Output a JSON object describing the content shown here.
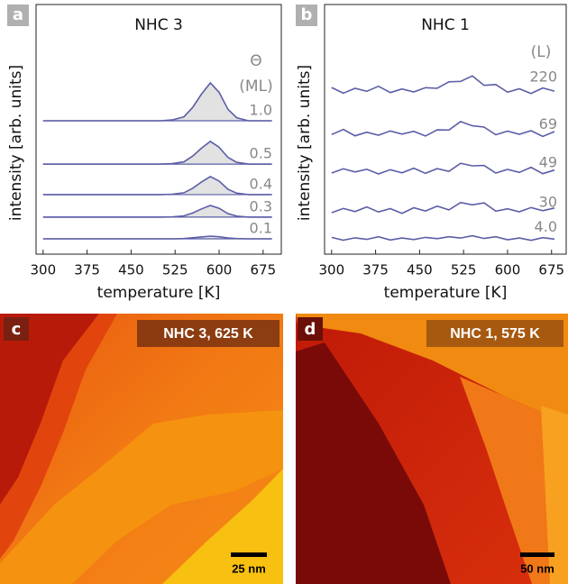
{
  "chart_data": [
    {
      "type": "line",
      "panel": "a",
      "title": "NHC 3",
      "xlabel": "temperature [K]",
      "ylabel": "intensity [arb. units]",
      "legend_title": [
        "Θ",
        "(ML)"
      ],
      "shaded": true,
      "color": "#5b5ea6",
      "fill_color": "#e2e2e2",
      "xlim": [
        288,
        706
      ],
      "ylim": [
        -4.4,
        117.6
      ],
      "xticks": [
        300,
        375,
        450,
        525,
        600,
        675
      ],
      "x": [
        300,
        350,
        400,
        450,
        475,
        500,
        520,
        540,
        555,
        570,
        585,
        600,
        615,
        630,
        650,
        675,
        690
      ],
      "series": [
        {
          "name": "1.0",
          "values": [
            60.8,
            60.8,
            60.8,
            60.8,
            60.8,
            60.8,
            61.2,
            62.7,
            67.3,
            73.8,
            79.3,
            74.7,
            66.4,
            62.3,
            60.8,
            60.8,
            60.8
          ]
        },
        {
          "name": "0.5",
          "values": [
            39.6,
            39.6,
            39.6,
            39.6,
            39.6,
            39.6,
            39.8,
            40.7,
            43.5,
            47.4,
            50.7,
            47.9,
            42.9,
            40.5,
            39.6,
            39.6,
            39.6
          ]
        },
        {
          "name": "0.4",
          "values": [
            24.7,
            24.7,
            24.7,
            24.7,
            24.7,
            24.7,
            24.9,
            25.6,
            27.8,
            30.9,
            33.5,
            31.3,
            27.3,
            25.4,
            24.7,
            24.7,
            24.7
          ]
        },
        {
          "name": "0.3",
          "values": [
            13.7,
            13.7,
            13.7,
            13.7,
            13.7,
            13.7,
            13.8,
            14.3,
            15.7,
            17.7,
            19.4,
            18.0,
            15.4,
            14.2,
            13.7,
            13.7,
            13.7
          ]
        },
        {
          "name": "0.1",
          "values": [
            3.1,
            3.1,
            3.1,
            3.1,
            3.1,
            3.1,
            3.1,
            3.2,
            3.6,
            4.0,
            4.4,
            4.1,
            3.5,
            3.2,
            3.1,
            3.1,
            3.1
          ]
        }
      ]
    },
    {
      "type": "line",
      "panel": "b",
      "title": "NHC 1",
      "xlabel": "temperature [K]",
      "ylabel": "intensity [arb. units]",
      "legend_title": [
        "(L)"
      ],
      "shaded": false,
      "color": "#5b5ea6",
      "xlim": [
        288,
        700
      ],
      "ylim": [
        -0.9,
        117
      ],
      "xticks": [
        300,
        375,
        450,
        525,
        600,
        675
      ],
      "x": [
        300,
        320,
        340,
        360,
        380,
        400,
        420,
        440,
        460,
        480,
        500,
        520,
        540,
        560,
        580,
        600,
        620,
        640,
        660,
        680
      ],
      "series": [
        {
          "name": "220",
          "values": [
            77.8,
            75.1,
            77.4,
            76.0,
            78.4,
            75.4,
            77.1,
            75.7,
            77.7,
            77.4,
            80.5,
            80.7,
            83.3,
            78.8,
            79.2,
            75.6,
            77.2,
            75.0,
            77.6,
            76.1
          ]
        },
        {
          "name": "69",
          "values": [
            55.6,
            58.0,
            55.0,
            56.7,
            55.3,
            57.3,
            55.8,
            57.1,
            54.9,
            57.8,
            57.7,
            61.7,
            59.7,
            59.1,
            55.5,
            57.2,
            55.7,
            57.4,
            54.7,
            57.0
          ]
        },
        {
          "name": "49",
          "values": [
            37.4,
            39.4,
            37.9,
            39.2,
            37.0,
            39.0,
            37.5,
            39.7,
            37.3,
            39.5,
            38.2,
            42.0,
            40.8,
            41.0,
            37.4,
            39.1,
            37.7,
            40.1,
            37.1,
            38.8
          ]
        },
        {
          "name": "30",
          "values": [
            18.7,
            20.7,
            19.2,
            21.4,
            19.0,
            20.6,
            18.4,
            21.0,
            19.5,
            21.8,
            20.0,
            23.5,
            22.4,
            23.3,
            19.4,
            20.5,
            19.1,
            21.1,
            19.6,
            20.9
          ]
        },
        {
          "name": "4.0",
          "values": [
            7.0,
            5.7,
            6.8,
            6.1,
            7.3,
            5.8,
            6.7,
            6.0,
            7.0,
            6.4,
            7.3,
            6.7,
            7.8,
            6.5,
            7.3,
            5.9,
            6.7,
            5.6,
            6.9,
            6.2
          ]
        }
      ]
    }
  ],
  "images": [
    {
      "panel": "c",
      "label": "NHC 3, 625 K",
      "scale": "25 nm"
    },
    {
      "panel": "d",
      "label": "NHC 1, 575 K",
      "scale": "50 nm"
    }
  ]
}
